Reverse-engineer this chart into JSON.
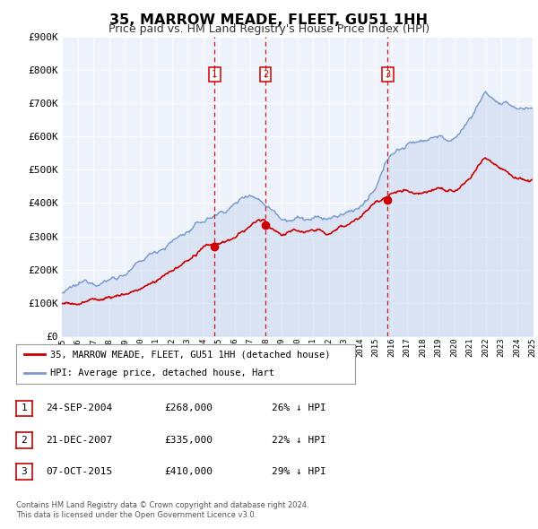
{
  "title": "35, MARROW MEADE, FLEET, GU51 1HH",
  "subtitle": "Price paid vs. HM Land Registry's House Price Index (HPI)",
  "legend_label_red": "35, MARROW MEADE, FLEET, GU51 1HH (detached house)",
  "legend_label_blue": "HPI: Average price, detached house, Hart",
  "footer_line1": "Contains HM Land Registry data © Crown copyright and database right 2024.",
  "footer_line2": "This data is licensed under the Open Government Licence v3.0.",
  "sale_events": [
    {
      "num": 1,
      "date": "24-SEP-2004",
      "price": "£268,000",
      "pct": "26% ↓ HPI",
      "year": 2004.73
    },
    {
      "num": 2,
      "date": "21-DEC-2007",
      "price": "£335,000",
      "pct": "22% ↓ HPI",
      "year": 2007.97
    },
    {
      "num": 3,
      "date": "07-OCT-2015",
      "price": "£410,000",
      "pct": "29% ↓ HPI",
      "year": 2015.77
    }
  ],
  "sale_prices": [
    268000,
    335000,
    410000
  ],
  "xlim": [
    1995,
    2025
  ],
  "ylim": [
    0,
    900000
  ],
  "yticks": [
    0,
    100000,
    200000,
    300000,
    400000,
    500000,
    600000,
    700000,
    800000,
    900000
  ],
  "ytick_labels": [
    "£0",
    "£100K",
    "£200K",
    "£300K",
    "£400K",
    "£500K",
    "£600K",
    "£700K",
    "£800K",
    "£900K"
  ],
  "xticks": [
    1995,
    1996,
    1997,
    1998,
    1999,
    2000,
    2001,
    2002,
    2003,
    2004,
    2005,
    2006,
    2007,
    2008,
    2009,
    2010,
    2011,
    2012,
    2013,
    2014,
    2015,
    2016,
    2017,
    2018,
    2019,
    2020,
    2021,
    2022,
    2023,
    2024,
    2025
  ],
  "red_color": "#cc0000",
  "blue_color": "#7799cc",
  "blue_fill": "#c8d8f0",
  "vline_color": "#cc0000",
  "background_chart": "#eef2fa",
  "grid_color": "#ffffff",
  "title_fontsize": 12,
  "subtitle_fontsize": 9,
  "hpi_base": [
    1995,
    1996,
    1997,
    1998,
    1999,
    2000,
    2001,
    2002,
    2003,
    2004,
    2005,
    2006,
    2007,
    2008,
    2009,
    2010,
    2011,
    2012,
    2013,
    2014,
    2015,
    2016,
    2017,
    2018,
    2019,
    2020,
    2021,
    2022,
    2023,
    2024,
    2025
  ],
  "hpi_vals": [
    130000,
    140000,
    155000,
    172000,
    195000,
    220000,
    255000,
    290000,
    320000,
    345000,
    370000,
    400000,
    440000,
    415000,
    385000,
    395000,
    385000,
    382000,
    390000,
    415000,
    455000,
    560000,
    585000,
    605000,
    625000,
    605000,
    672000,
    755000,
    715000,
    698000,
    700000
  ],
  "red_base": [
    1995,
    1996,
    1997,
    1998,
    1999,
    2000,
    2001,
    2002,
    2003,
    2004,
    2004.73,
    2005,
    2006,
    2007,
    2007.97,
    2008,
    2009,
    2010,
    2011,
    2012,
    2013,
    2014,
    2015,
    2015.77,
    2016,
    2017,
    2018,
    2019,
    2020,
    2021,
    2022,
    2023,
    2024,
    2025
  ],
  "red_vals": [
    97000,
    100000,
    108000,
    118000,
    128000,
    148000,
    168000,
    200000,
    228000,
    260000,
    268000,
    272000,
    285000,
    315000,
    335000,
    318000,
    295000,
    305000,
    298000,
    292000,
    315000,
    355000,
    398000,
    410000,
    420000,
    428000,
    438000,
    455000,
    445000,
    475000,
    530000,
    515000,
    498000,
    500000
  ]
}
